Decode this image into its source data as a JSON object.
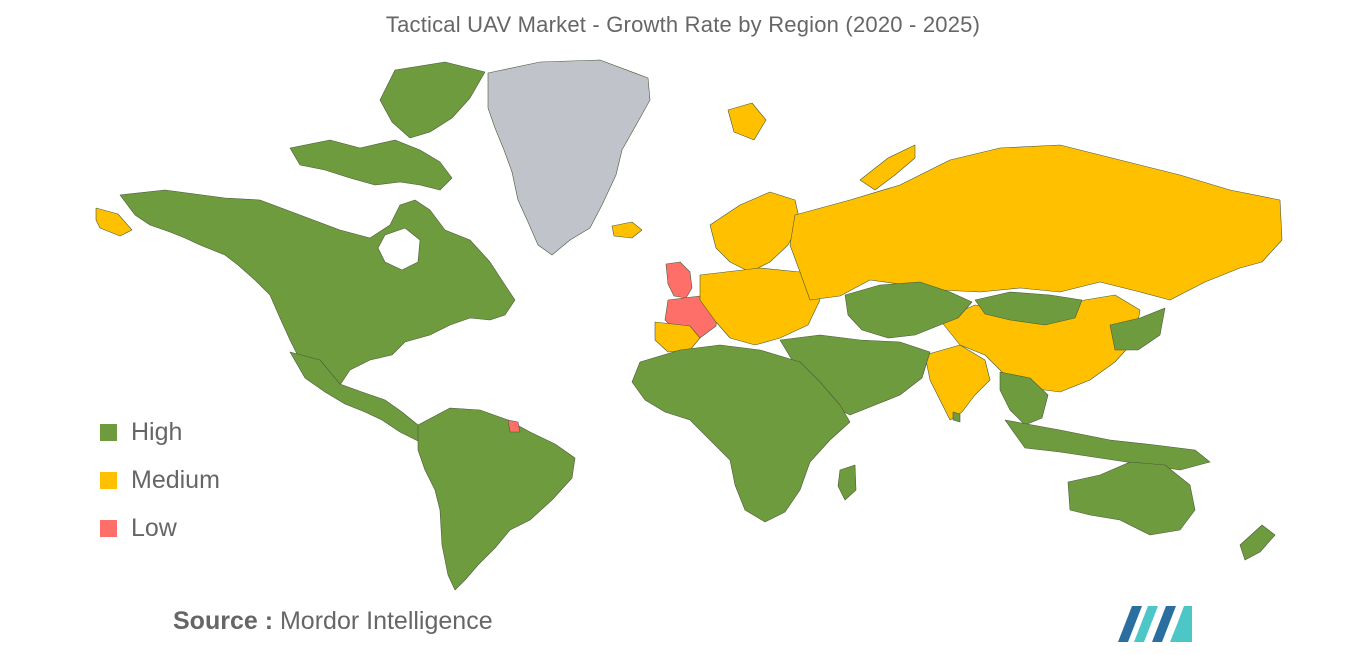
{
  "title": "Tactical UAV Market - Growth Rate by Region (2020 - 2025)",
  "legend": {
    "items": [
      {
        "label": "High",
        "color": "#6f9b3f"
      },
      {
        "label": "Medium",
        "color": "#ffc000"
      },
      {
        "label": "Low",
        "color": "#ff6f69"
      }
    ]
  },
  "colors": {
    "high": "#6f9b3f",
    "medium": "#ffc000",
    "low": "#ff6f69",
    "no_data": "#c0c3ca",
    "logo_dark": "#2a6fa0",
    "logo_light": "#4cc6c6"
  },
  "source": {
    "prefix": "Source :",
    "text": "Mordor Intelligence"
  }
}
